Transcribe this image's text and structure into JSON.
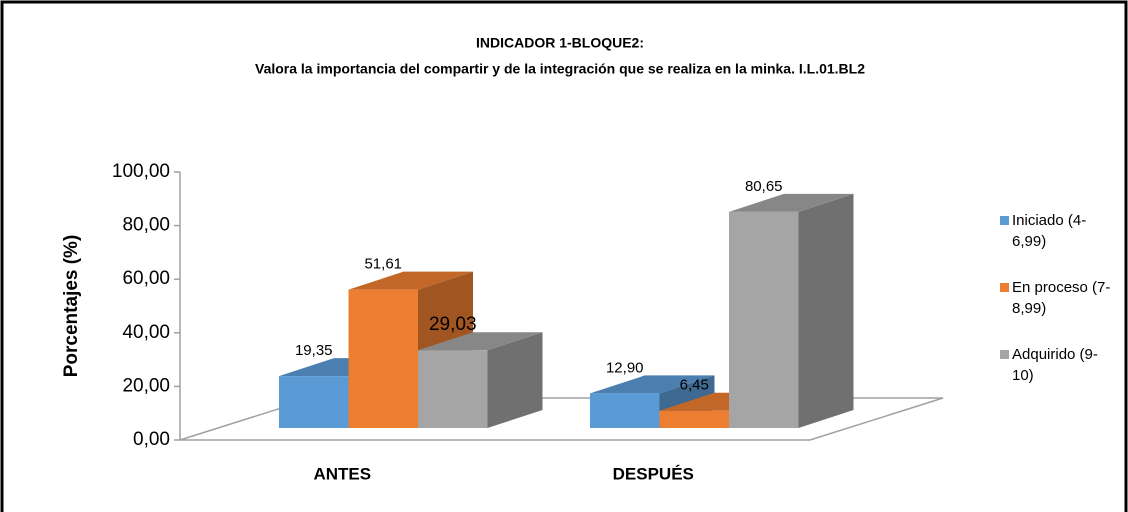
{
  "chart_data": {
    "type": "bar3d",
    "title": "INDICADOR 1-BLOQUE2:",
    "subtitle": "Valora la importancia del compartir y de la integración que se realiza en la minka. I.L.01.BL2",
    "y_label": "Porcentajes (%)",
    "categories": [
      "ANTES",
      "DESPUÉS"
    ],
    "series": [
      {
        "name": "Iniciado (4-6,99)",
        "color": "#5b9bd5",
        "values": [
          19.35,
          12.9
        ],
        "value_labels": [
          "19,35",
          "12,90"
        ]
      },
      {
        "name": "En proceso (7-8,99)",
        "color": "#ed7d31",
        "values": [
          51.61,
          6.45
        ],
        "value_labels": [
          "51,61",
          "6,45"
        ]
      },
      {
        "name": "Adquirido (9-10)",
        "color": "#a5a5a5",
        "values": [
          29.03,
          80.65
        ],
        "value_labels": [
          "29,03",
          "80,65"
        ]
      }
    ],
    "ylim": [
      0,
      100
    ],
    "yticks": [
      {
        "value": 0,
        "label": "0,00"
      },
      {
        "value": 20,
        "label": "20,00"
      },
      {
        "value": 40,
        "label": "40,00"
      },
      {
        "value": 60,
        "label": "60,00"
      },
      {
        "value": 80,
        "label": "80,00"
      },
      {
        "value": 100,
        "label": "100,00"
      }
    ],
    "legend": "right"
  }
}
